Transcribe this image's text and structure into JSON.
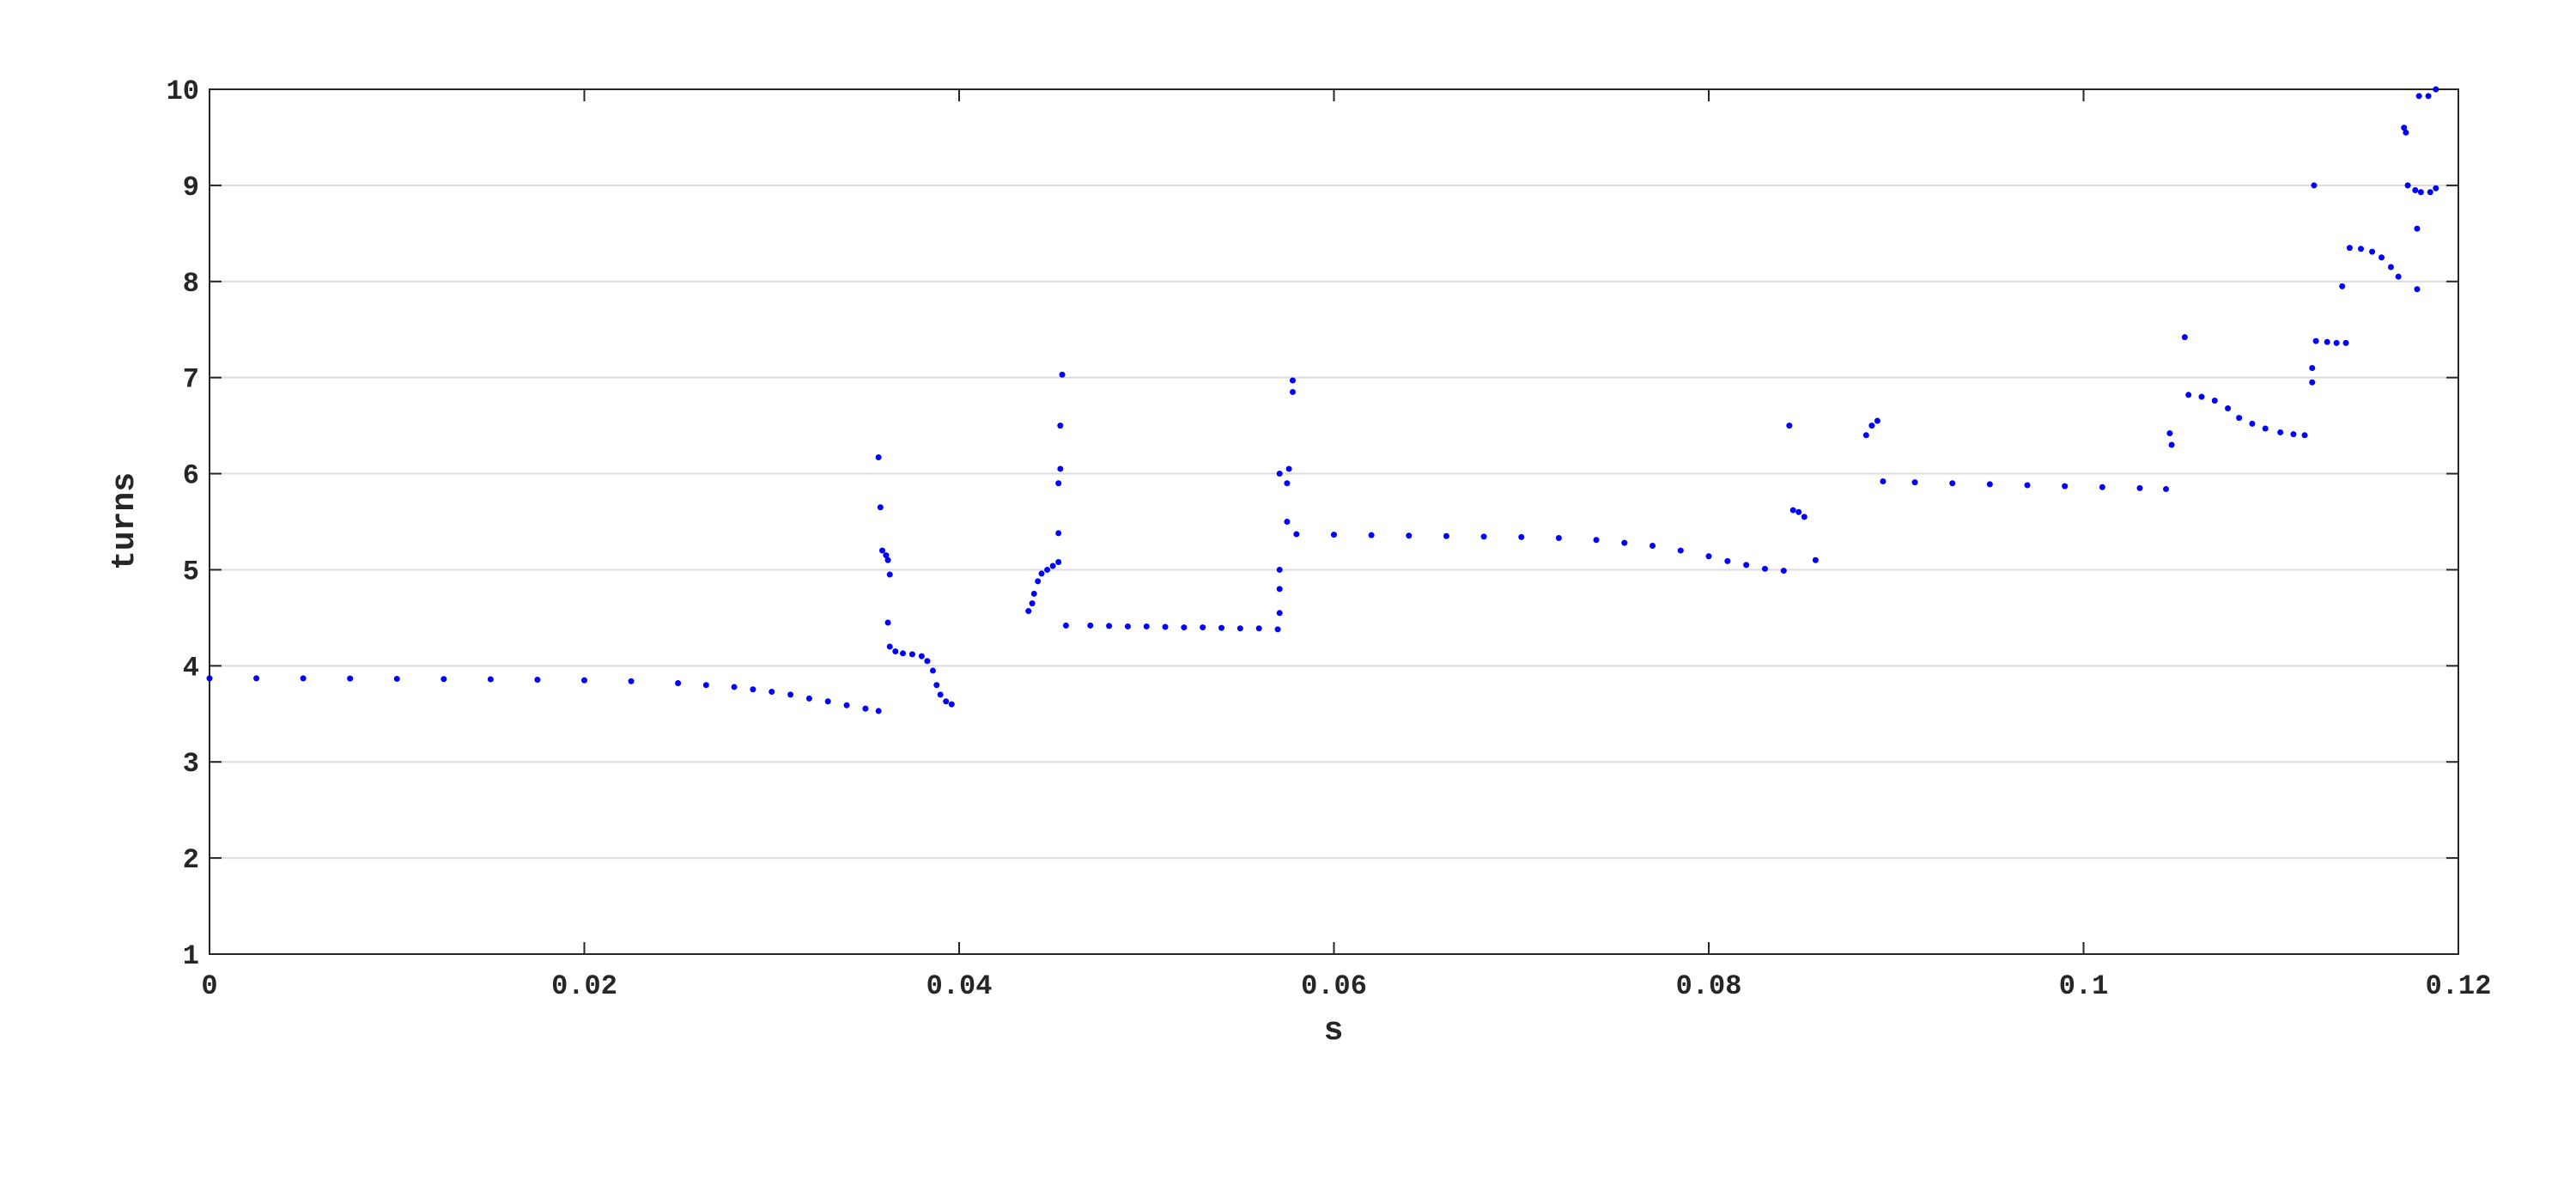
{
  "chart_data": {
    "type": "scatter",
    "xlabel": "s",
    "ylabel": "turns",
    "color": "#0000ff",
    "xlim": [
      0,
      0.12
    ],
    "xticks": [
      0,
      0.02,
      0.04,
      0.06,
      0.08,
      0.1,
      0.12
    ],
    "ylim": [
      1,
      10
    ],
    "yticks": [
      1,
      2,
      3,
      4,
      5,
      6,
      7,
      8,
      9,
      10
    ],
    "grid": "y",
    "x": [
      0,
      0.0025,
      0.005,
      0.0075,
      0.01,
      0.0125,
      0.015,
      0.0175,
      0.02,
      0.0225,
      0.025,
      0.0265,
      0.028,
      0.029,
      0.03,
      0.031,
      0.032,
      0.033,
      0.034,
      0.035,
      0.0357,
      0.0357,
      0.0358,
      0.0359,
      0.0361,
      0.0362,
      0.0363,
      0.0362,
      0.0363,
      0.0366,
      0.037,
      0.0375,
      0.038,
      0.0383,
      0.0386,
      0.0388,
      0.039,
      0.0393,
      0.0396,
      0.0437,
      0.0439,
      0.044,
      0.0442,
      0.0444,
      0.0447,
      0.045,
      0.0453,
      0.0453,
      0.0453,
      0.0454,
      0.0454,
      0.0455,
      0.0457,
      0.047,
      0.048,
      0.049,
      0.05,
      0.051,
      0.052,
      0.053,
      0.054,
      0.055,
      0.056,
      0.057,
      0.0571,
      0.0571,
      0.0571,
      0.0571,
      0.0575,
      0.0575,
      0.0576,
      0.0578,
      0.0578,
      0.058,
      0.06,
      0.062,
      0.064,
      0.066,
      0.068,
      0.07,
      0.072,
      0.074,
      0.0755,
      0.077,
      0.0785,
      0.08,
      0.081,
      0.082,
      0.083,
      0.084,
      0.0843,
      0.0845,
      0.0848,
      0.0851,
      0.0857,
      0.0884,
      0.0887,
      0.089,
      0.0893,
      0.091,
      0.093,
      0.095,
      0.097,
      0.099,
      0.101,
      0.103,
      0.1044,
      0.1046,
      0.1047,
      0.1054,
      0.1056,
      0.1063,
      0.107,
      0.1077,
      0.1083,
      0.109,
      0.1097,
      0.1105,
      0.1112,
      0.1118,
      0.1122,
      0.1122,
      0.1123,
      0.1124,
      0.113,
      0.1135,
      0.114,
      0.1138,
      0.1142,
      0.1148,
      0.1154,
      0.1159,
      0.1164,
      0.1168,
      0.1171,
      0.1172,
      0.1173,
      0.1177,
      0.118,
      0.1185,
      0.1188,
      0.1178,
      0.1178,
      0.1179,
      0.1184,
      0.1188
    ],
    "values": [
      3.87,
      3.87,
      3.87,
      3.868,
      3.865,
      3.862,
      3.86,
      3.855,
      3.85,
      3.84,
      3.82,
      3.8,
      3.78,
      3.755,
      3.73,
      3.7,
      3.66,
      3.63,
      3.59,
      3.555,
      3.53,
      6.17,
      5.65,
      5.2,
      5.15,
      5.1,
      4.95,
      4.45,
      4.2,
      4.15,
      4.13,
      4.12,
      4.1,
      4.05,
      3.95,
      3.8,
      3.7,
      3.63,
      3.6,
      4.57,
      4.65,
      4.75,
      4.88,
      4.96,
      5.0,
      5.04,
      5.08,
      5.38,
      5.9,
      6.05,
      6.5,
      7.03,
      4.42,
      4.42,
      4.415,
      4.41,
      4.41,
      4.405,
      4.4,
      4.4,
      4.395,
      4.39,
      4.39,
      4.38,
      4.55,
      4.8,
      5.0,
      6.0,
      5.5,
      5.9,
      6.05,
      6.85,
      6.97,
      5.37,
      5.365,
      5.36,
      5.355,
      5.35,
      5.345,
      5.34,
      5.33,
      5.31,
      5.28,
      5.25,
      5.2,
      5.14,
      5.09,
      5.05,
      5.01,
      4.99,
      6.5,
      5.62,
      5.6,
      5.55,
      5.1,
      6.4,
      6.5,
      6.55,
      5.92,
      5.91,
      5.9,
      5.89,
      5.88,
      5.87,
      5.86,
      5.85,
      5.84,
      6.42,
      6.3,
      7.42,
      6.82,
      6.8,
      6.76,
      6.68,
      6.58,
      6.52,
      6.47,
      6.43,
      6.41,
      6.4,
      6.95,
      7.1,
      9.0,
      7.38,
      7.37,
      7.36,
      7.36,
      7.95,
      8.35,
      8.34,
      8.31,
      8.25,
      8.15,
      8.05,
      9.6,
      9.55,
      9.0,
      8.95,
      8.93,
      8.93,
      8.97,
      8.55,
      7.92,
      9.93,
      9.93,
      10.0
    ]
  }
}
